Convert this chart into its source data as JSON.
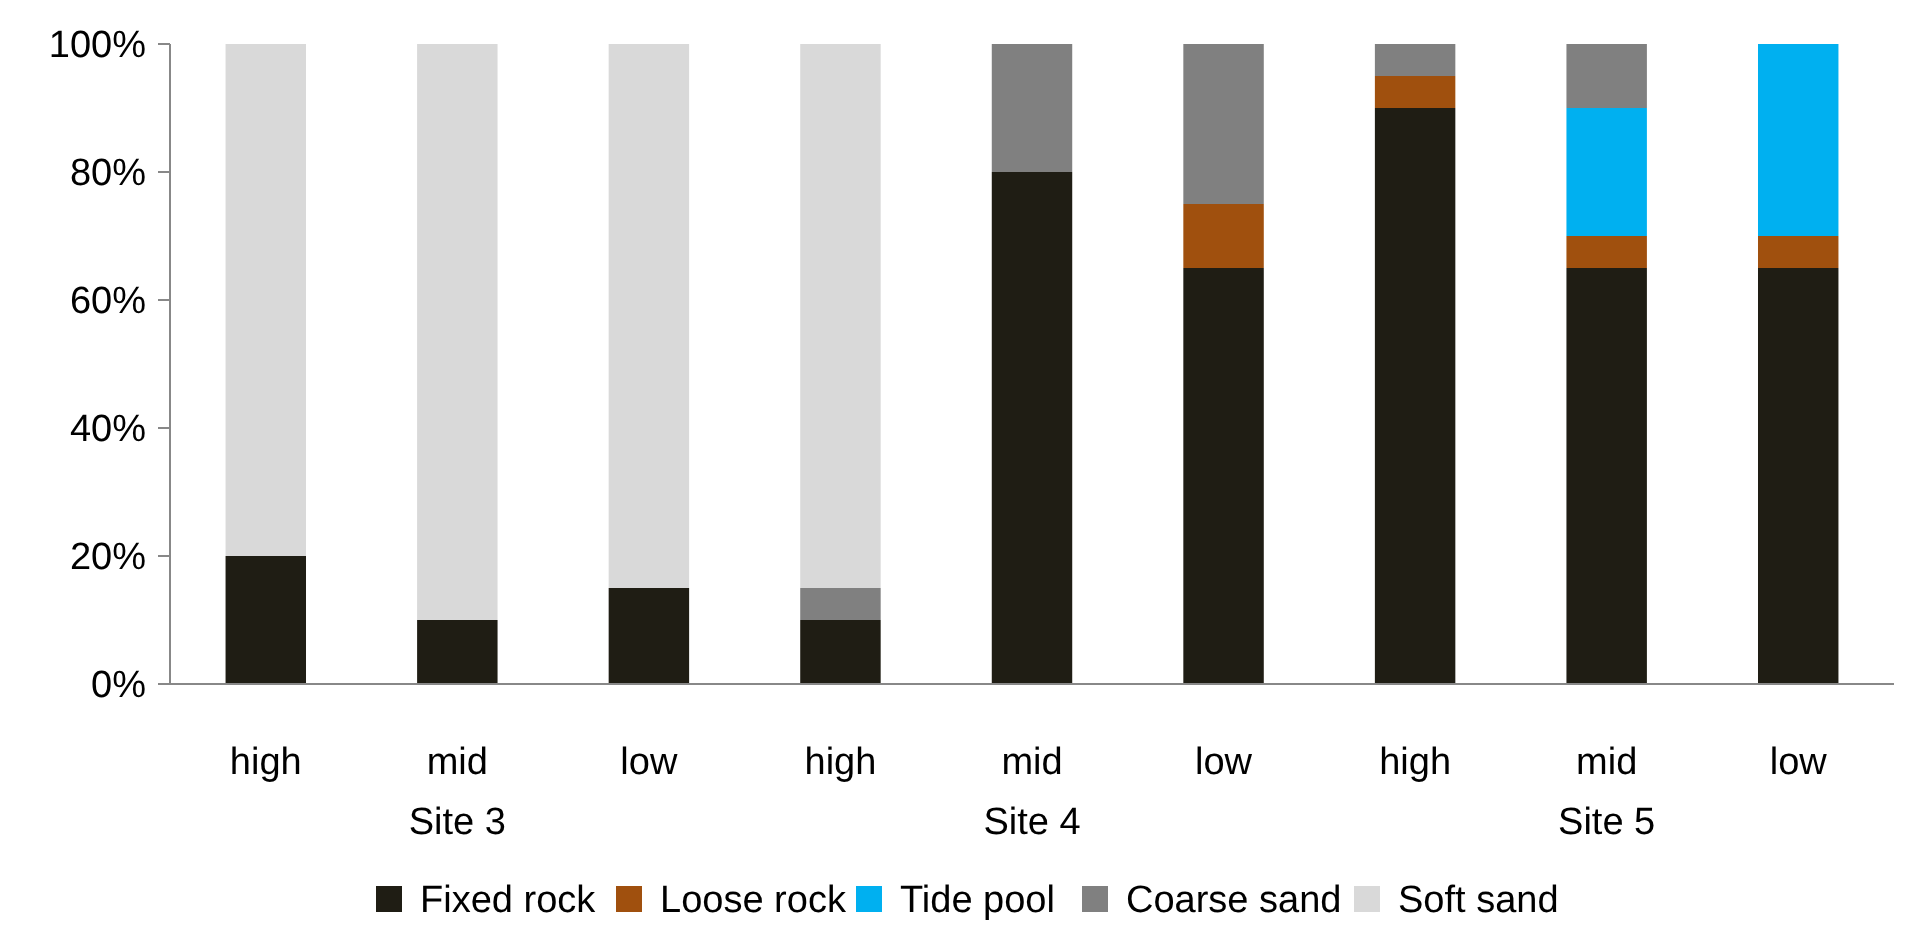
{
  "chart_data": {
    "type": "bar",
    "stacked": true,
    "categories": [
      "high",
      "mid",
      "low",
      "high",
      "mid",
      "low",
      "high",
      "mid",
      "low"
    ],
    "series": [
      {
        "name": "Fixed rock",
        "color": "#1f1d14",
        "values": [
          20,
          10,
          15,
          10,
          80,
          65,
          90,
          65,
          65
        ]
      },
      {
        "name": "Loose rock",
        "color": "#a0500e",
        "values": [
          0,
          0,
          0,
          0,
          0,
          10,
          5,
          5,
          5
        ]
      },
      {
        "name": "Tide pool",
        "color": "#00b0f0",
        "values": [
          0,
          0,
          0,
          0,
          0,
          0,
          0,
          20,
          30
        ]
      },
      {
        "name": "Coarse sand",
        "color": "#808080",
        "values": [
          0,
          0,
          0,
          5,
          20,
          25,
          5,
          10,
          0
        ]
      },
      {
        "name": "Soft sand",
        "color": "#d9d9d9",
        "values": [
          80,
          90,
          85,
          85,
          0,
          0,
          0,
          0,
          0
        ]
      }
    ],
    "ylim": [
      0,
      100
    ],
    "yticks": [
      {
        "value": 0,
        "label": "0%"
      },
      {
        "value": 20,
        "label": "20%"
      },
      {
        "value": 40,
        "label": "40%"
      },
      {
        "value": 60,
        "label": "60%"
      },
      {
        "value": 80,
        "label": "80%"
      },
      {
        "value": 100,
        "label": "100%"
      }
    ],
    "annotations": [
      "Site 3",
      "Site 4",
      "Site 5"
    ],
    "grid": false,
    "legend": "bottom"
  }
}
